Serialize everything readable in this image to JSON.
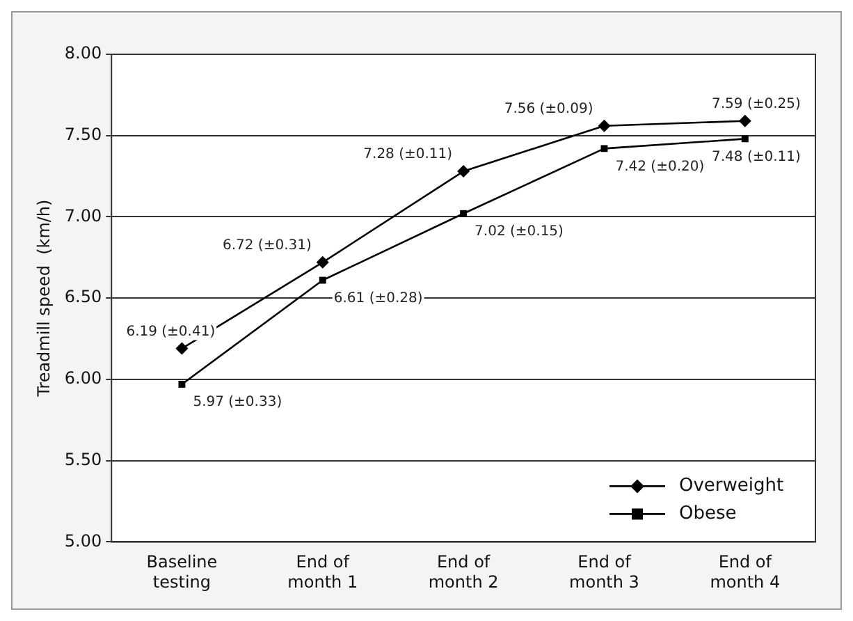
{
  "chart_data": {
    "type": "line",
    "ylabel": "Treadmill speed  (km/h)",
    "categories": [
      "Baseline testing",
      "End of month 1",
      "End of month 2",
      "End of month 3",
      "End of month 4"
    ],
    "series": [
      {
        "name": "Overweight",
        "color": "#000000",
        "marker": "diamond",
        "values": [
          6.19,
          6.72,
          7.28,
          7.56,
          7.59
        ],
        "value_labels": [
          "6.19 (±0.41)",
          "6.72 (±0.31)",
          "7.28 (±0.11)",
          "7.56 (±0.09)",
          "7.59 (±0.25)"
        ]
      },
      {
        "name": "Obese",
        "color": "#000000",
        "marker": "square",
        "values": [
          5.97,
          6.61,
          7.02,
          7.42,
          7.48
        ],
        "value_labels": [
          "5.97 (±0.33)",
          "6.61 (±0.28)",
          "7.02 (±0.15)",
          "7.42 (±0.20)",
          "7.48 (±0.11)"
        ]
      }
    ],
    "ylim": [
      5,
      8
    ],
    "yticks": [
      {
        "value": 5,
        "label": "5.00"
      },
      {
        "value": 5.5,
        "label": "5.50"
      },
      {
        "value": 6,
        "label": "6.00"
      },
      {
        "value": 6.5,
        "label": "6.50"
      },
      {
        "value": 7,
        "label": "7.00"
      },
      {
        "value": 7.5,
        "label": "7.50"
      },
      {
        "value": 8,
        "label": "8.00"
      }
    ],
    "grid": "y",
    "legend": "bottom right",
    "line_style": "solid"
  }
}
